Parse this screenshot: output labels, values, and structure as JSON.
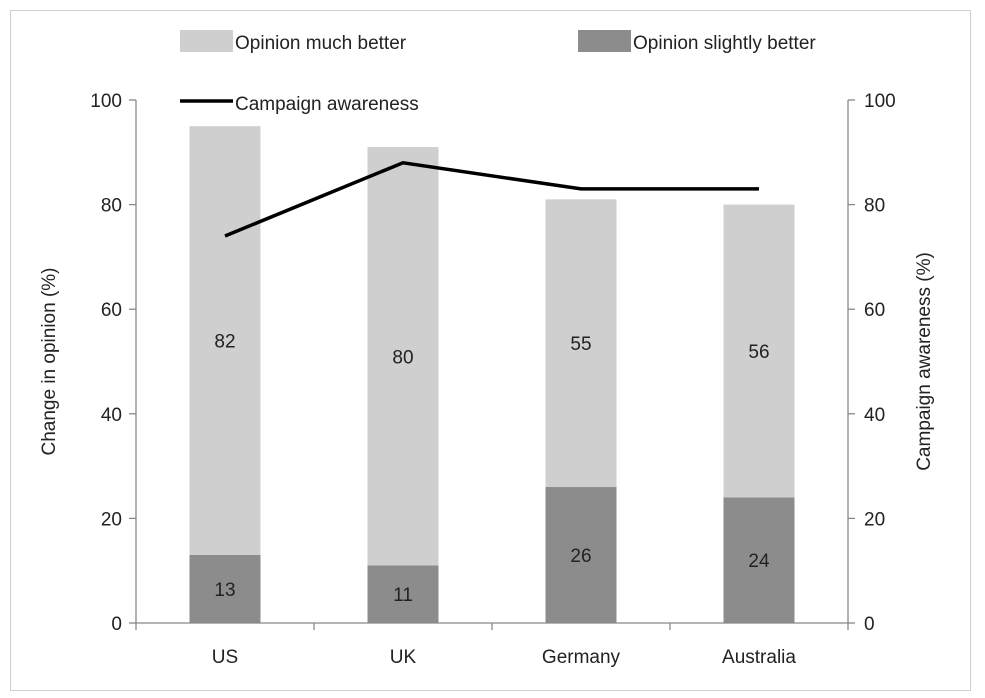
{
  "chart_data": {
    "type": "bar",
    "stacked": true,
    "categories": [
      "US",
      "UK",
      "Germany",
      "Australia"
    ],
    "series": [
      {
        "name": "Opinion slightly better",
        "axis": "left",
        "type": "bar",
        "values": [
          13,
          11,
          26,
          24
        ],
        "color": "#8c8c8c"
      },
      {
        "name": "Opinion much better",
        "axis": "left",
        "type": "bar",
        "values": [
          82,
          80,
          55,
          56
        ],
        "color": "#cfcfcf"
      },
      {
        "name": "Campaign awareness",
        "axis": "right",
        "type": "line",
        "values": [
          74,
          88,
          83,
          83
        ],
        "color": "#000000"
      }
    ],
    "ylabel": "Change in opinion (%)",
    "y2label": "Campaign awareness (%)",
    "ylim": [
      0,
      100
    ],
    "y2lim": [
      0,
      100
    ],
    "yticks": [
      "0",
      "20",
      "40",
      "60",
      "80",
      "100"
    ],
    "y2ticks": [
      "0",
      "20",
      "40",
      "60",
      "80",
      "100"
    ],
    "grid": false,
    "legend_placement": "top"
  }
}
